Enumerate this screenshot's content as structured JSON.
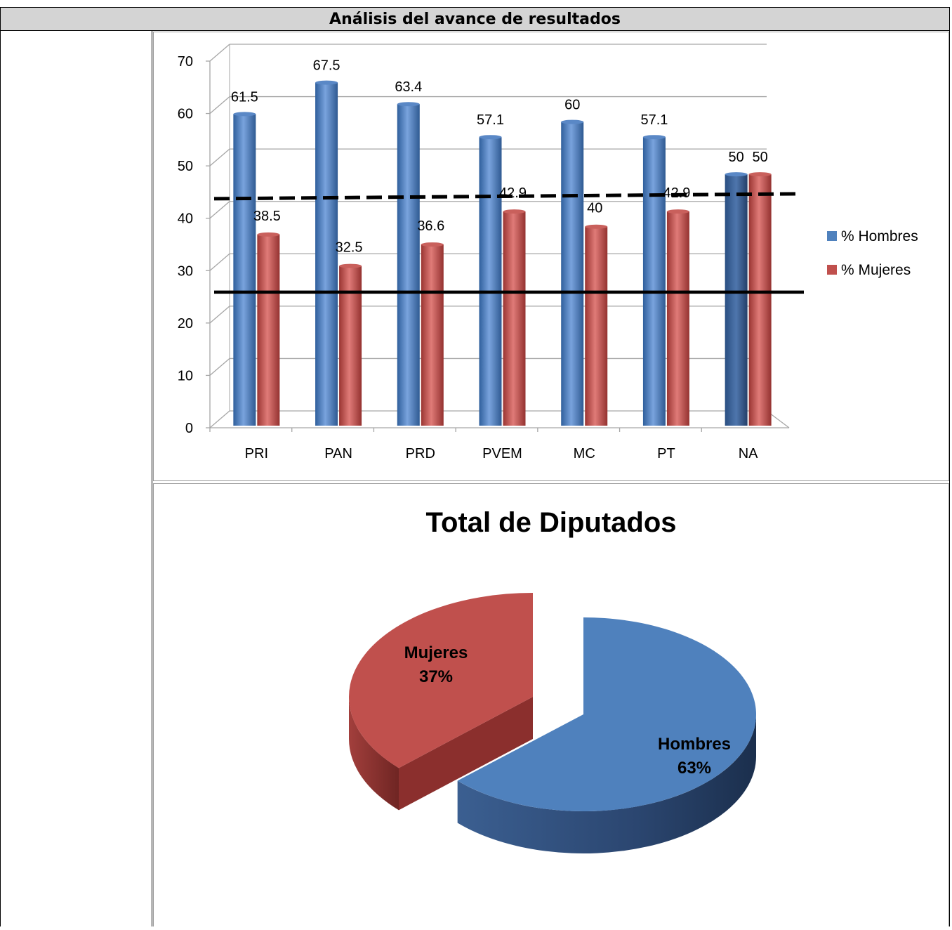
{
  "header": {
    "title": "Análisis del avance de resultados"
  },
  "chart_data": [
    {
      "type": "bar",
      "title": "",
      "xlabel": "",
      "ylabel": "",
      "categories": [
        "PRI",
        "PAN",
        "PRD",
        "PVEM",
        "MC",
        "PT",
        "NA"
      ],
      "series": [
        {
          "name": "% Hombres",
          "values": [
            61.5,
            67.5,
            63.4,
            57.1,
            60,
            57.1,
            50
          ],
          "labels": [
            "61.5",
            "67.5",
            "63.4",
            "57.1",
            "60",
            "57.1",
            "50"
          ],
          "color": "#4f81bd"
        },
        {
          "name": "% Mujeres",
          "values": [
            38.5,
            32.5,
            36.6,
            42.9,
            40,
            42.9,
            50
          ],
          "labels": [
            "38.5",
            "32.5",
            "36.6",
            "42.9",
            "40",
            "42.9",
            "50"
          ],
          "color": "#c0504d"
        }
      ],
      "ylim": [
        0,
        70
      ],
      "yticks": [
        "0",
        "10",
        "20",
        "30",
        "40",
        "50",
        "60",
        "70"
      ],
      "grid": true,
      "legend": "right",
      "reference_lines": [
        {
          "style": "dashed",
          "y": 44
        },
        {
          "style": "solid",
          "y": 25.9
        }
      ]
    },
    {
      "type": "pie",
      "title": "Total de Diputados",
      "slices": [
        {
          "name": "Hombres",
          "value": 63,
          "label": "Hombres",
          "pct": "63%",
          "color": "#4f81bd"
        },
        {
          "name": "Mujeres",
          "value": 37,
          "label": "Mujeres",
          "pct": "37%",
          "color": "#c0504d"
        }
      ]
    }
  ]
}
